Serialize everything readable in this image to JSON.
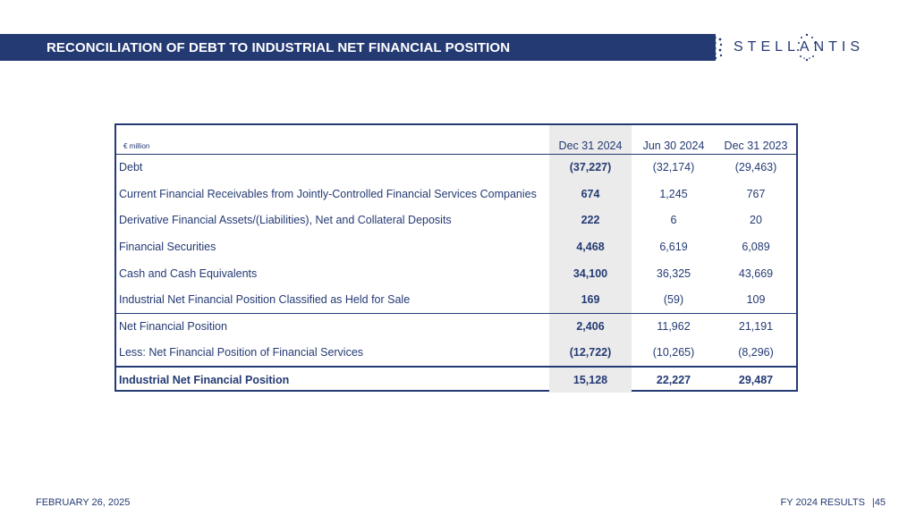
{
  "header": {
    "title": "RECONCILIATION OF DEBT TO INDUSTRIAL NET FINANCIAL POSITION",
    "brand": "STELLANTIS",
    "brand_color": "#243a73"
  },
  "table": {
    "unit": "€ million",
    "columns": [
      "Dec 31 2024",
      "Jun 30 2024",
      "Dec 31 2023"
    ],
    "rows": [
      {
        "label": "Debt",
        "values": [
          "(37,227)",
          "(32,174)",
          "(29,463)"
        ]
      },
      {
        "label": "Current Financial Receivables from Jointly-Controlled Financial Services Companies",
        "values": [
          "674",
          "1,245",
          "767"
        ]
      },
      {
        "label": "Derivative Financial Assets/(Liabilities), Net and Collateral Deposits",
        "values": [
          "222",
          "6",
          "20"
        ]
      },
      {
        "label": "Financial Securities",
        "values": [
          "4,468",
          "6,619",
          "6,089"
        ]
      },
      {
        "label": "Cash and Cash Equivalents",
        "values": [
          "34,100",
          "36,325",
          "43,669"
        ]
      },
      {
        "label": "Industrial Net Financial Position Classified as Held for Sale",
        "values": [
          "169",
          "(59)",
          "109"
        ]
      },
      {
        "label": "Net Financial Position",
        "values": [
          "2,406",
          "11,962",
          "21,191"
        ]
      },
      {
        "label": "Less:  Net Financial Position of Financial Services",
        "values": [
          "(12,722)",
          "(10,265)",
          "(8,296)"
        ]
      },
      {
        "label": "Industrial Net Financial Position",
        "values": [
          "15,128",
          "22,227",
          "29,487"
        ]
      }
    ]
  },
  "footer": {
    "date": "FEBRUARY 26, 2025",
    "report": "FY 2024 RESULTS",
    "page": "|45"
  }
}
